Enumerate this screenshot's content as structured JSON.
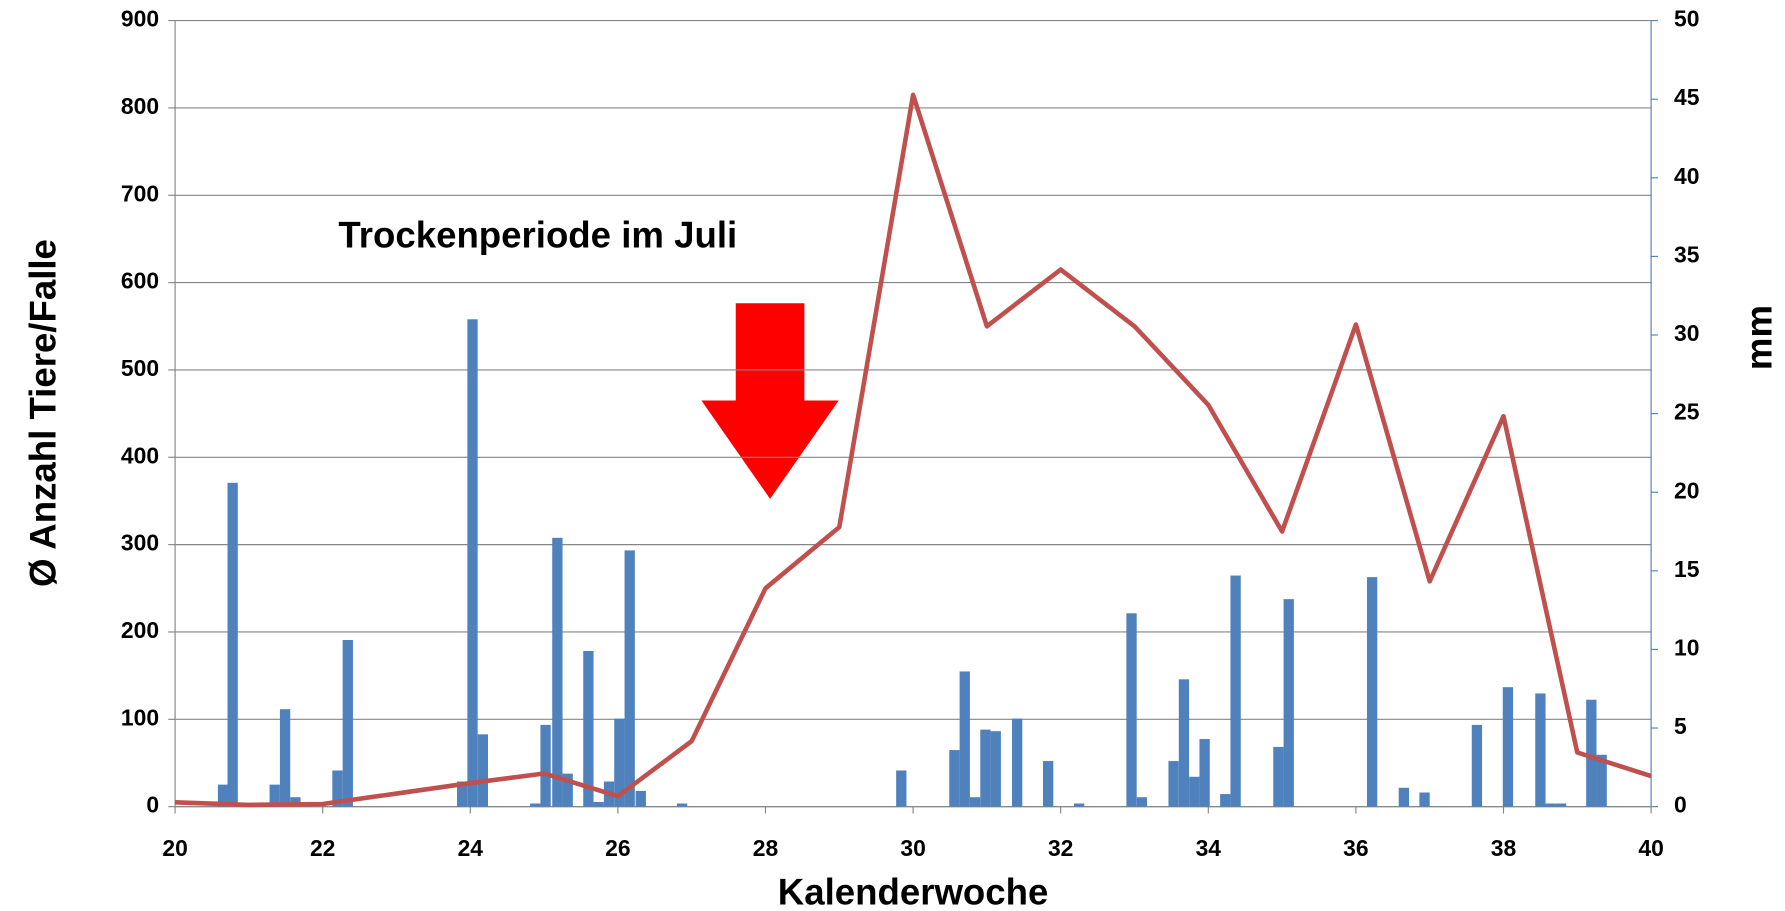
{
  "chart_data": {
    "type": "bar-line",
    "annotation": "Trockenperiode im Juli",
    "xlabel": "Kalenderwoche",
    "ylabel": "Ø Anzahl Tiere/Falle",
    "y2label": "mm",
    "xlim": [
      20,
      40
    ],
    "xticks": [
      20,
      22,
      24,
      26,
      28,
      30,
      32,
      34,
      36,
      38,
      40
    ],
    "ylim": [
      0,
      900
    ],
    "yticks": [
      0,
      100,
      200,
      300,
      400,
      500,
      600,
      700,
      800,
      900
    ],
    "y2lim": [
      0,
      50
    ],
    "y2ticks": [
      0,
      5,
      10,
      15,
      20,
      25,
      30,
      35,
      40,
      45,
      50
    ],
    "grid": true,
    "series": [
      {
        "type": "bar",
        "axis": "y2",
        "color": "#4f81bd",
        "x": [
          20.65,
          20.78,
          21.35,
          21.49,
          21.63,
          22.2,
          22.34,
          23.89,
          24.03,
          24.17,
          24.88,
          25.02,
          25.18,
          25.32,
          25.6,
          25.74,
          25.88,
          26.02,
          26.16,
          26.31,
          26.87,
          29.84,
          30.56,
          30.7,
          30.84,
          30.98,
          31.12,
          31.41,
          31.83,
          32.25,
          32.96,
          33.1,
          33.53,
          33.67,
          33.81,
          33.95,
          34.23,
          34.37,
          34.95,
          35.09,
          36.22,
          36.65,
          36.93,
          37.64,
          38.06,
          38.5,
          38.64,
          38.78,
          39.19,
          39.33
        ],
        "values": [
          1.4,
          20.6,
          1.4,
          6.2,
          0.6,
          2.3,
          10.6,
          1.6,
          31.0,
          4.6,
          0.2,
          5.2,
          17.1,
          2.1,
          9.9,
          0.3,
          1.6,
          5.6,
          16.3,
          1.0,
          0.2,
          2.3,
          3.6,
          8.6,
          0.6,
          4.9,
          4.8,
          5.6,
          2.9,
          0.2,
          12.3,
          0.6,
          2.9,
          8.1,
          1.9,
          4.3,
          0.8,
          14.7,
          3.8,
          13.2,
          14.6,
          1.2,
          0.9,
          5.2,
          7.6,
          7.2,
          0.2,
          0.2,
          6.8,
          3.3
        ]
      },
      {
        "type": "line",
        "color": "#c0504d",
        "x": [
          20,
          21,
          22,
          23,
          24,
          25,
          26,
          27,
          28,
          29,
          30,
          31,
          32,
          33,
          34,
          35,
          36,
          37,
          38,
          39,
          40
        ],
        "values": [
          5,
          2,
          3,
          15,
          27,
          38,
          12,
          75,
          250,
          320,
          815,
          550,
          615,
          550,
          460,
          315,
          552,
          258,
          447,
          62,
          35
        ]
      }
    ]
  }
}
